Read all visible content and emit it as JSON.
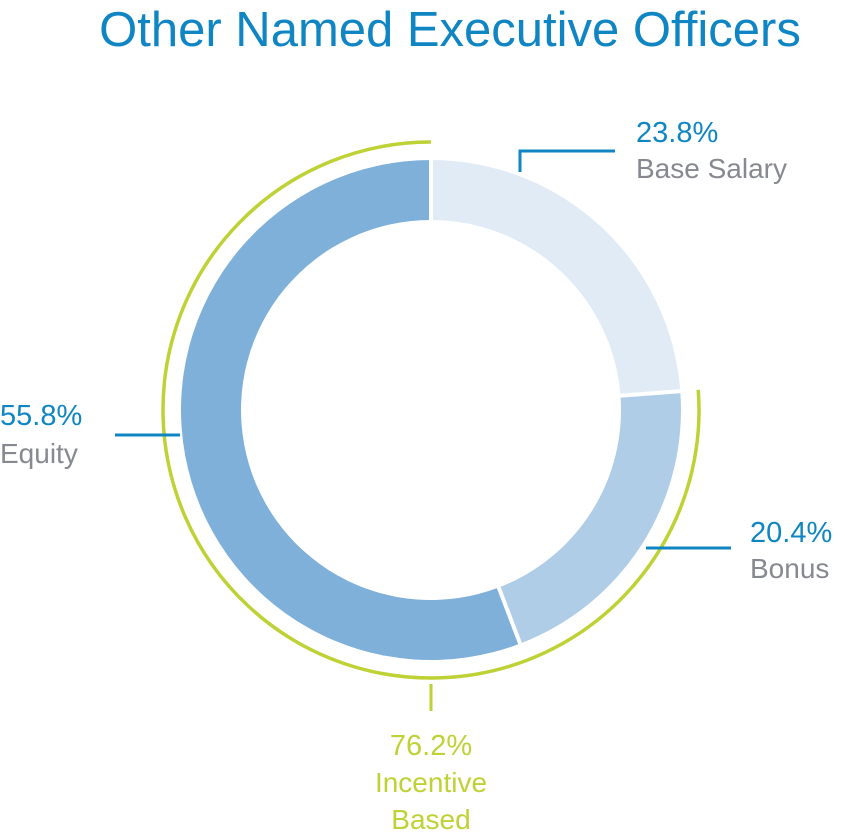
{
  "chart_data": {
    "type": "donut",
    "title": "Other Named Executive Officers",
    "categories": [
      "Base Salary",
      "Bonus",
      "Equity"
    ],
    "values": [
      23.8,
      20.4,
      55.8
    ],
    "value_labels": [
      "23.8%",
      "20.4%",
      "55.8%"
    ],
    "colors": [
      "#e1ebf5",
      "#b0cde8",
      "#7eb0d9"
    ],
    "group": {
      "name_lines": [
        "Incentive",
        "Based"
      ],
      "value": 76.2,
      "value_label": "76.2%",
      "members": [
        "Bonus",
        "Equity"
      ],
      "color": "#bed135"
    }
  },
  "colors": {
    "accent": "#0f86c3",
    "label_gray": "#86898f",
    "incentive_green": "#bed135",
    "separator": "#ffffff"
  }
}
